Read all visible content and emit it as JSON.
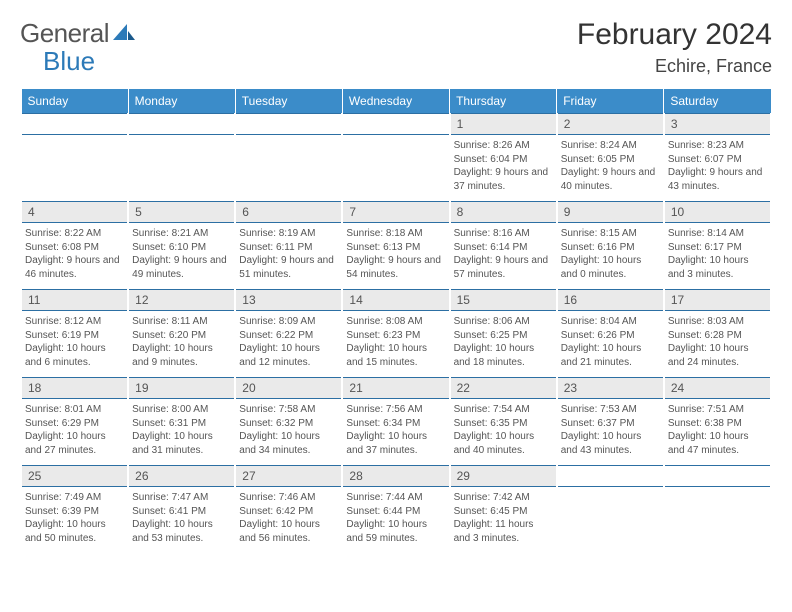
{
  "brand": {
    "part1": "General",
    "part2": "Blue"
  },
  "title": "February 2024",
  "location": "Echire, France",
  "day_headers": [
    "Sunday",
    "Monday",
    "Tuesday",
    "Wednesday",
    "Thursday",
    "Friday",
    "Saturday"
  ],
  "colors": {
    "header_bg": "#3b8cc9",
    "header_text": "#ffffff",
    "daynum_bg": "#eaeaea",
    "border": "#2c6fa3",
    "logo_blue": "#2c7ab8",
    "text": "#555555"
  },
  "fonts": {
    "title_size": 30,
    "location_size": 18,
    "header_size": 12,
    "daynum_size": 12,
    "cell_size": 10
  },
  "weeks": [
    [
      null,
      null,
      null,
      null,
      {
        "num": "1",
        "sunrise": "8:26 AM",
        "sunset": "6:04 PM",
        "daylight": "9 hours and 37 minutes."
      },
      {
        "num": "2",
        "sunrise": "8:24 AM",
        "sunset": "6:05 PM",
        "daylight": "9 hours and 40 minutes."
      },
      {
        "num": "3",
        "sunrise": "8:23 AM",
        "sunset": "6:07 PM",
        "daylight": "9 hours and 43 minutes."
      }
    ],
    [
      {
        "num": "4",
        "sunrise": "8:22 AM",
        "sunset": "6:08 PM",
        "daylight": "9 hours and 46 minutes."
      },
      {
        "num": "5",
        "sunrise": "8:21 AM",
        "sunset": "6:10 PM",
        "daylight": "9 hours and 49 minutes."
      },
      {
        "num": "6",
        "sunrise": "8:19 AM",
        "sunset": "6:11 PM",
        "daylight": "9 hours and 51 minutes."
      },
      {
        "num": "7",
        "sunrise": "8:18 AM",
        "sunset": "6:13 PM",
        "daylight": "9 hours and 54 minutes."
      },
      {
        "num": "8",
        "sunrise": "8:16 AM",
        "sunset": "6:14 PM",
        "daylight": "9 hours and 57 minutes."
      },
      {
        "num": "9",
        "sunrise": "8:15 AM",
        "sunset": "6:16 PM",
        "daylight": "10 hours and 0 minutes."
      },
      {
        "num": "10",
        "sunrise": "8:14 AM",
        "sunset": "6:17 PM",
        "daylight": "10 hours and 3 minutes."
      }
    ],
    [
      {
        "num": "11",
        "sunrise": "8:12 AM",
        "sunset": "6:19 PM",
        "daylight": "10 hours and 6 minutes."
      },
      {
        "num": "12",
        "sunrise": "8:11 AM",
        "sunset": "6:20 PM",
        "daylight": "10 hours and 9 minutes."
      },
      {
        "num": "13",
        "sunrise": "8:09 AM",
        "sunset": "6:22 PM",
        "daylight": "10 hours and 12 minutes."
      },
      {
        "num": "14",
        "sunrise": "8:08 AM",
        "sunset": "6:23 PM",
        "daylight": "10 hours and 15 minutes."
      },
      {
        "num": "15",
        "sunrise": "8:06 AM",
        "sunset": "6:25 PM",
        "daylight": "10 hours and 18 minutes."
      },
      {
        "num": "16",
        "sunrise": "8:04 AM",
        "sunset": "6:26 PM",
        "daylight": "10 hours and 21 minutes."
      },
      {
        "num": "17",
        "sunrise": "8:03 AM",
        "sunset": "6:28 PM",
        "daylight": "10 hours and 24 minutes."
      }
    ],
    [
      {
        "num": "18",
        "sunrise": "8:01 AM",
        "sunset": "6:29 PM",
        "daylight": "10 hours and 27 minutes."
      },
      {
        "num": "19",
        "sunrise": "8:00 AM",
        "sunset": "6:31 PM",
        "daylight": "10 hours and 31 minutes."
      },
      {
        "num": "20",
        "sunrise": "7:58 AM",
        "sunset": "6:32 PM",
        "daylight": "10 hours and 34 minutes."
      },
      {
        "num": "21",
        "sunrise": "7:56 AM",
        "sunset": "6:34 PM",
        "daylight": "10 hours and 37 minutes."
      },
      {
        "num": "22",
        "sunrise": "7:54 AM",
        "sunset": "6:35 PM",
        "daylight": "10 hours and 40 minutes."
      },
      {
        "num": "23",
        "sunrise": "7:53 AM",
        "sunset": "6:37 PM",
        "daylight": "10 hours and 43 minutes."
      },
      {
        "num": "24",
        "sunrise": "7:51 AM",
        "sunset": "6:38 PM",
        "daylight": "10 hours and 47 minutes."
      }
    ],
    [
      {
        "num": "25",
        "sunrise": "7:49 AM",
        "sunset": "6:39 PM",
        "daylight": "10 hours and 50 minutes."
      },
      {
        "num": "26",
        "sunrise": "7:47 AM",
        "sunset": "6:41 PM",
        "daylight": "10 hours and 53 minutes."
      },
      {
        "num": "27",
        "sunrise": "7:46 AM",
        "sunset": "6:42 PM",
        "daylight": "10 hours and 56 minutes."
      },
      {
        "num": "28",
        "sunrise": "7:44 AM",
        "sunset": "6:44 PM",
        "daylight": "10 hours and 59 minutes."
      },
      {
        "num": "29",
        "sunrise": "7:42 AM",
        "sunset": "6:45 PM",
        "daylight": "11 hours and 3 minutes."
      },
      null,
      null
    ]
  ],
  "labels": {
    "sunrise": "Sunrise: ",
    "sunset": "Sunset: ",
    "daylight": "Daylight: "
  }
}
